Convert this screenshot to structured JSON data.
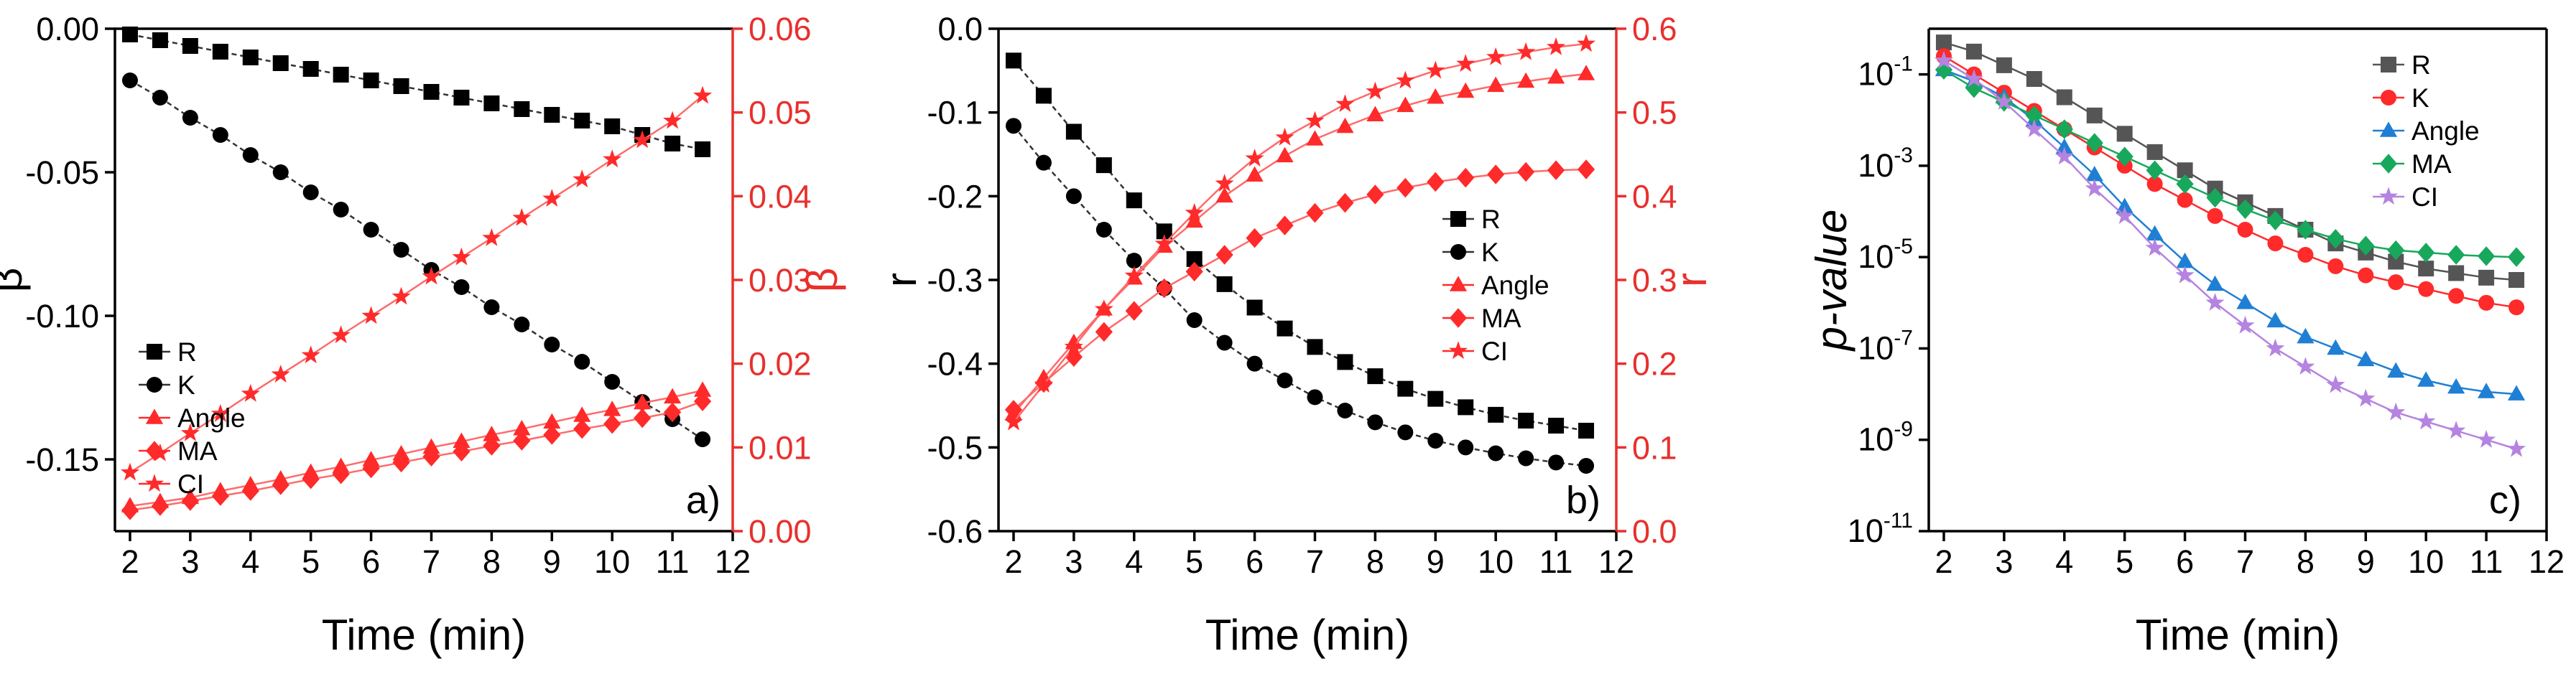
{
  "chart_data": [
    {
      "type": "line",
      "panel_label": "a)",
      "xlabel": "Time (min)",
      "ylabel": "β",
      "y2label": "β",
      "xlim": [
        1.75,
        12
      ],
      "ylim": [
        -0.175,
        0.0
      ],
      "y2lim": [
        0.0,
        0.06
      ],
      "x_ticks": [
        "2",
        "3",
        "4",
        "5",
        "6",
        "7",
        "8",
        "9",
        "10",
        "11",
        "12"
      ],
      "y_ticks": [
        "0.00",
        "-0.05",
        "-0.10",
        "-0.15"
      ],
      "y_tick_values": [
        0.0,
        -0.05,
        -0.1,
        -0.15
      ],
      "y2_ticks": [
        "0.00",
        "0.01",
        "0.02",
        "0.03",
        "0.04",
        "0.05",
        "0.06"
      ],
      "y2_tick_values": [
        0.0,
        0.01,
        0.02,
        0.03,
        0.04,
        0.05,
        0.06
      ],
      "x": [
        2,
        2.5,
        3,
        3.5,
        4,
        4.5,
        5,
        5.5,
        6,
        6.5,
        7,
        7.5,
        8,
        8.5,
        9,
        9.5,
        10,
        10.5,
        11,
        11.5
      ],
      "legend": [
        "R",
        "K",
        "Angle",
        "MA",
        "CI"
      ],
      "series": [
        {
          "name": "R",
          "axis": "left",
          "color": "#000000",
          "marker": "square",
          "values": [
            -0.002,
            -0.004,
            -0.006,
            -0.008,
            -0.01,
            -0.012,
            -0.014,
            -0.016,
            -0.018,
            -0.02,
            -0.022,
            -0.024,
            -0.026,
            -0.028,
            -0.03,
            -0.032,
            -0.034,
            -0.037,
            -0.04,
            -0.042
          ]
        },
        {
          "name": "K",
          "axis": "left",
          "color": "#000000",
          "marker": "circle",
          "values": [
            -0.018,
            -0.024,
            -0.031,
            -0.037,
            -0.044,
            -0.05,
            -0.057,
            -0.063,
            -0.07,
            -0.077,
            -0.084,
            -0.09,
            -0.097,
            -0.103,
            -0.11,
            -0.116,
            -0.123,
            -0.13,
            -0.136,
            -0.143
          ]
        },
        {
          "name": "Angle",
          "axis": "right",
          "color": "#ff2a2a",
          "marker": "triangle",
          "values": [
            0.003,
            0.0035,
            0.004,
            0.0048,
            0.0055,
            0.0062,
            0.007,
            0.0077,
            0.0085,
            0.0092,
            0.01,
            0.0107,
            0.0115,
            0.0122,
            0.013,
            0.0138,
            0.0145,
            0.0153,
            0.016,
            0.0168
          ]
        },
        {
          "name": "MA",
          "axis": "right",
          "color": "#ff2a2a",
          "marker": "diamond",
          "values": [
            0.0025,
            0.003,
            0.0036,
            0.0042,
            0.0048,
            0.0055,
            0.0062,
            0.0068,
            0.0075,
            0.0082,
            0.0089,
            0.0095,
            0.0102,
            0.0108,
            0.0115,
            0.0122,
            0.0128,
            0.0135,
            0.0142,
            0.0155
          ]
        },
        {
          "name": "CI",
          "axis": "right",
          "color": "#ff2a2a",
          "marker": "star",
          "values": [
            0.007,
            0.0093,
            0.0117,
            0.014,
            0.0164,
            0.0187,
            0.021,
            0.0234,
            0.0257,
            0.028,
            0.0304,
            0.0327,
            0.035,
            0.0374,
            0.0397,
            0.042,
            0.0444,
            0.0467,
            0.049,
            0.052
          ]
        }
      ]
    },
    {
      "type": "line",
      "panel_label": "b)",
      "xlabel": "Time (min)",
      "ylabel": "r",
      "y2label": "r",
      "xlim": [
        1.75,
        12
      ],
      "ylim": [
        -0.6,
        0.0
      ],
      "y2lim": [
        0.0,
        0.6
      ],
      "x_ticks": [
        "2",
        "3",
        "4",
        "5",
        "6",
        "7",
        "8",
        "9",
        "10",
        "11",
        "12"
      ],
      "y_ticks": [
        "0.0",
        "-0.1",
        "-0.2",
        "-0.3",
        "-0.4",
        "-0.5",
        "-0.6"
      ],
      "y_tick_values": [
        0.0,
        -0.1,
        -0.2,
        -0.3,
        -0.4,
        -0.5,
        -0.6
      ],
      "y2_ticks": [
        "0.0",
        "0.1",
        "0.2",
        "0.3",
        "0.4",
        "0.5",
        "0.6"
      ],
      "y2_tick_values": [
        0.0,
        0.1,
        0.2,
        0.3,
        0.4,
        0.5,
        0.6
      ],
      "x": [
        2,
        2.5,
        3,
        3.5,
        4,
        4.5,
        5,
        5.5,
        6,
        6.5,
        7,
        7.5,
        8,
        8.5,
        9,
        9.5,
        10,
        10.5,
        11,
        11.5
      ],
      "legend": [
        "R",
        "K",
        "Angle",
        "MA",
        "CI"
      ],
      "series": [
        {
          "name": "R",
          "axis": "left",
          "color": "#000000",
          "marker": "square",
          "values": [
            -0.038,
            -0.08,
            -0.123,
            -0.163,
            -0.205,
            -0.242,
            -0.275,
            -0.305,
            -0.333,
            -0.358,
            -0.38,
            -0.398,
            -0.415,
            -0.43,
            -0.442,
            -0.452,
            -0.461,
            -0.468,
            -0.474,
            -0.48
          ]
        },
        {
          "name": "K",
          "axis": "left",
          "color": "#000000",
          "marker": "circle",
          "values": [
            -0.116,
            -0.16,
            -0.2,
            -0.24,
            -0.277,
            -0.31,
            -0.348,
            -0.375,
            -0.4,
            -0.42,
            -0.44,
            -0.456,
            -0.47,
            -0.482,
            -0.492,
            -0.5,
            -0.507,
            -0.513,
            -0.518,
            -0.522
          ]
        },
        {
          "name": "Angle",
          "axis": "right",
          "color": "#ff2a2a",
          "marker": "triangle",
          "values": [
            0.14,
            0.183,
            0.225,
            0.265,
            0.302,
            0.34,
            0.37,
            0.4,
            0.425,
            0.448,
            0.468,
            0.483,
            0.497,
            0.508,
            0.518,
            0.525,
            0.532,
            0.537,
            0.542,
            0.546
          ]
        },
        {
          "name": "MA",
          "axis": "right",
          "color": "#ff2a2a",
          "marker": "diamond",
          "values": [
            0.145,
            0.177,
            0.208,
            0.238,
            0.263,
            0.29,
            0.31,
            0.33,
            0.35,
            0.365,
            0.38,
            0.392,
            0.402,
            0.41,
            0.417,
            0.422,
            0.426,
            0.429,
            0.431,
            0.432
          ]
        },
        {
          "name": "CI",
          "axis": "right",
          "color": "#ff2a2a",
          "marker": "star",
          "values": [
            0.13,
            0.175,
            0.22,
            0.265,
            0.305,
            0.343,
            0.38,
            0.415,
            0.445,
            0.47,
            0.49,
            0.51,
            0.525,
            0.538,
            0.55,
            0.558,
            0.566,
            0.572,
            0.578,
            0.582
          ]
        }
      ]
    },
    {
      "type": "line",
      "panel_label": "c)",
      "xlabel": "Time (min)",
      "ylabel": "p-value",
      "y_scale": "log",
      "xlim": [
        1.75,
        12
      ],
      "ylim_log10": [
        -11,
        0
      ],
      "x_ticks": [
        "2",
        "3",
        "4",
        "5",
        "6",
        "7",
        "8",
        "9",
        "10",
        "11",
        "12"
      ],
      "y_ticks": [
        "10",
        "10",
        "10",
        "10",
        "10",
        "10"
      ],
      "y_tick_exponents": [
        "-11",
        "-9",
        "-7",
        "-5",
        "-3",
        "-1"
      ],
      "y_tick_values_log10": [
        -11,
        -9,
        -7,
        -5,
        -3,
        -1
      ],
      "x": [
        2,
        2.5,
        3,
        3.5,
        4,
        4.5,
        5,
        5.5,
        6,
        6.5,
        7,
        7.5,
        8,
        8.5,
        9,
        9.5,
        10,
        10.5,
        11,
        11.5
      ],
      "legend": [
        "R",
        "K",
        "Angle",
        "MA",
        "CI"
      ],
      "series": [
        {
          "name": "R",
          "color": "#555555",
          "marker": "square",
          "log10_values": [
            -0.3,
            -0.5,
            -0.8,
            -1.1,
            -1.5,
            -1.9,
            -2.3,
            -2.7,
            -3.1,
            -3.5,
            -3.8,
            -4.1,
            -4.4,
            -4.7,
            -4.9,
            -5.1,
            -5.25,
            -5.35,
            -5.45,
            -5.5
          ]
        },
        {
          "name": "K",
          "color": "#ff2a2a",
          "marker": "circle",
          "log10_values": [
            -0.6,
            -1.0,
            -1.4,
            -1.8,
            -2.2,
            -2.6,
            -3.0,
            -3.4,
            -3.75,
            -4.1,
            -4.4,
            -4.7,
            -4.95,
            -5.2,
            -5.4,
            -5.55,
            -5.7,
            -5.85,
            -6.0,
            -6.1
          ]
        },
        {
          "name": "Angle",
          "color": "#1f7fd4",
          "marker": "triangle",
          "log10_values": [
            -0.9,
            -1.15,
            -1.5,
            -2.0,
            -2.6,
            -3.2,
            -3.9,
            -4.5,
            -5.1,
            -5.6,
            -6.0,
            -6.4,
            -6.75,
            -7.0,
            -7.25,
            -7.5,
            -7.7,
            -7.85,
            -7.95,
            -8.0
          ]
        },
        {
          "name": "MA",
          "color": "#18a85c",
          "marker": "diamond",
          "log10_values": [
            -0.9,
            -1.3,
            -1.6,
            -1.9,
            -2.2,
            -2.5,
            -2.8,
            -3.1,
            -3.4,
            -3.7,
            -3.95,
            -4.2,
            -4.4,
            -4.6,
            -4.75,
            -4.85,
            -4.9,
            -4.95,
            -4.98,
            -5.0
          ]
        },
        {
          "name": "CI",
          "color": "#b583e0",
          "marker": "star",
          "log10_values": [
            -0.7,
            -1.1,
            -1.6,
            -2.2,
            -2.8,
            -3.5,
            -4.1,
            -4.8,
            -5.4,
            -6.0,
            -6.5,
            -7.0,
            -7.4,
            -7.8,
            -8.1,
            -8.4,
            -8.6,
            -8.8,
            -9.0,
            -9.2
          ]
        }
      ]
    }
  ]
}
